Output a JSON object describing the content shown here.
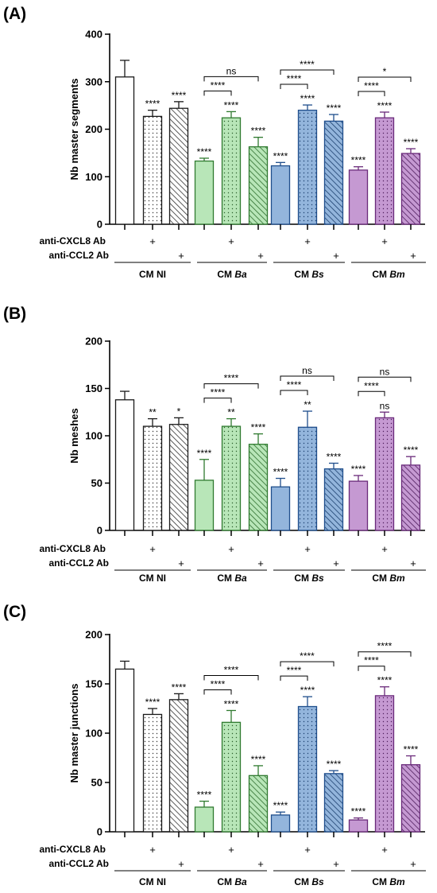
{
  "colors": {
    "NI": "#ffffff",
    "Ba": "#b8e6b8",
    "Bs": "#93b5dc",
    "Bm": "#c599d2",
    "stroke_NI": "#1a1a1a",
    "stroke_Ba": "#2f7a2f",
    "stroke_Bs": "#1f4e8c",
    "stroke_Bm": "#6a2a7a"
  },
  "chart_data": [
    {
      "type": "bar",
      "panel": "(A)",
      "ylabel": "Nb master segments",
      "ylim": [
        0,
        400
      ],
      "yticks": [
        "0",
        "100",
        "200",
        "300",
        "400"
      ],
      "bars": [
        {
          "group": "NI",
          "treatment": "none",
          "value": 310,
          "error": 35,
          "sig": ""
        },
        {
          "group": "NI",
          "treatment": "CXCL8",
          "value": 227,
          "error": 13,
          "sig": "****"
        },
        {
          "group": "NI",
          "treatment": "CCL2",
          "value": 244,
          "error": 14,
          "sig": "****"
        },
        {
          "group": "Ba",
          "treatment": "none",
          "value": 133,
          "error": 6,
          "sig": "****"
        },
        {
          "group": "Ba",
          "treatment": "CXCL8",
          "value": 224,
          "error": 13,
          "sig": "****"
        },
        {
          "group": "Ba",
          "treatment": "CCL2",
          "value": 163,
          "error": 20,
          "sig": "****"
        },
        {
          "group": "Bs",
          "treatment": "none",
          "value": 123,
          "error": 7,
          "sig": "****"
        },
        {
          "group": "Bs",
          "treatment": "CXCL8",
          "value": 240,
          "error": 11,
          "sig": "****"
        },
        {
          "group": "Bs",
          "treatment": "CCL2",
          "value": 217,
          "error": 14,
          "sig": "****"
        },
        {
          "group": "Bm",
          "treatment": "none",
          "value": 114,
          "error": 7,
          "sig": "****"
        },
        {
          "group": "Bm",
          "treatment": "CXCL8",
          "value": 224,
          "error": 12,
          "sig": "****"
        },
        {
          "group": "Bm",
          "treatment": "CCL2",
          "value": 149,
          "error": 10,
          "sig": "****"
        }
      ],
      "brackets": [
        {
          "group": "Ba",
          "inner": "****",
          "outer": "ns"
        },
        {
          "group": "Bs",
          "inner": "****",
          "outer": "****"
        },
        {
          "group": "Bm",
          "inner": "****",
          "outer": "*"
        }
      ],
      "row_labels": [
        "anti-CXCL8 Ab",
        "anti-CCL2 Ab"
      ],
      "plus": "+",
      "groups": [
        {
          "prefix": "CM ",
          "name": "NI"
        },
        {
          "prefix": "CM ",
          "name": "Ba"
        },
        {
          "prefix": "CM ",
          "name": "Bs"
        },
        {
          "prefix": "CM ",
          "name": "Bm"
        }
      ]
    },
    {
      "type": "bar",
      "panel": "(B)",
      "ylabel": "Nb meshes",
      "ylim": [
        0,
        200
      ],
      "yticks": [
        "0",
        "50",
        "100",
        "150",
        "200"
      ],
      "bars": [
        {
          "group": "NI",
          "treatment": "none",
          "value": 138,
          "error": 9,
          "sig": ""
        },
        {
          "group": "NI",
          "treatment": "CXCL8",
          "value": 110,
          "error": 8,
          "sig": "**"
        },
        {
          "group": "NI",
          "treatment": "CCL2",
          "value": 112,
          "error": 7,
          "sig": "*"
        },
        {
          "group": "Ba",
          "treatment": "none",
          "value": 53,
          "error": 22,
          "sig": "****"
        },
        {
          "group": "Ba",
          "treatment": "CXCL8",
          "value": 110,
          "error": 8,
          "sig": "**"
        },
        {
          "group": "Ba",
          "treatment": "CCL2",
          "value": 91,
          "error": 11,
          "sig": "****"
        },
        {
          "group": "Bs",
          "treatment": "none",
          "value": 46,
          "error": 9,
          "sig": "****"
        },
        {
          "group": "Bs",
          "treatment": "CXCL8",
          "value": 109,
          "error": 17,
          "sig": "**"
        },
        {
          "group": "Bs",
          "treatment": "CCL2",
          "value": 65,
          "error": 6,
          "sig": "****"
        },
        {
          "group": "Bm",
          "treatment": "none",
          "value": 52,
          "error": 6,
          "sig": "****"
        },
        {
          "group": "Bm",
          "treatment": "CXCL8",
          "value": 119,
          "error": 6,
          "sig": "ns"
        },
        {
          "group": "Bm",
          "treatment": "CCL2",
          "value": 69,
          "error": 9,
          "sig": "****"
        }
      ],
      "brackets": [
        {
          "group": "Ba",
          "inner": "****",
          "outer": "****"
        },
        {
          "group": "Bs",
          "inner": "****",
          "outer": "ns"
        },
        {
          "group": "Bm",
          "inner": "****",
          "outer": "ns"
        }
      ],
      "row_labels": [
        "anti-CXCL8 Ab",
        "anti-CCL2 Ab"
      ],
      "plus": "+",
      "groups": [
        {
          "prefix": "CM ",
          "name": "NI"
        },
        {
          "prefix": "CM ",
          "name": "Ba"
        },
        {
          "prefix": "CM ",
          "name": "Bs"
        },
        {
          "prefix": "CM ",
          "name": "Bm"
        }
      ]
    },
    {
      "type": "bar",
      "panel": "(C)",
      "ylabel": "Nb master junctions",
      "ylim": [
        0,
        200
      ],
      "yticks": [
        "0",
        "50",
        "100",
        "150",
        "200"
      ],
      "bars": [
        {
          "group": "NI",
          "treatment": "none",
          "value": 165,
          "error": 8,
          "sig": ""
        },
        {
          "group": "NI",
          "treatment": "CXCL8",
          "value": 119,
          "error": 6,
          "sig": "****"
        },
        {
          "group": "NI",
          "treatment": "CCL2",
          "value": 134,
          "error": 6,
          "sig": "****"
        },
        {
          "group": "Ba",
          "treatment": "none",
          "value": 25,
          "error": 6,
          "sig": "****"
        },
        {
          "group": "Ba",
          "treatment": "CXCL8",
          "value": 111,
          "error": 12,
          "sig": "****"
        },
        {
          "group": "Ba",
          "treatment": "CCL2",
          "value": 57,
          "error": 10,
          "sig": "****"
        },
        {
          "group": "Bs",
          "treatment": "none",
          "value": 17,
          "error": 3,
          "sig": "****"
        },
        {
          "group": "Bs",
          "treatment": "CXCL8",
          "value": 127,
          "error": 10,
          "sig": "****"
        },
        {
          "group": "Bs",
          "treatment": "CCL2",
          "value": 59,
          "error": 3,
          "sig": "****"
        },
        {
          "group": "Bm",
          "treatment": "none",
          "value": 12,
          "error": 2,
          "sig": "****"
        },
        {
          "group": "Bm",
          "treatment": "CXCL8",
          "value": 138,
          "error": 9,
          "sig": "****"
        },
        {
          "group": "Bm",
          "treatment": "CCL2",
          "value": 68,
          "error": 9,
          "sig": "****"
        }
      ],
      "brackets": [
        {
          "group": "Ba",
          "inner": "****",
          "outer": "****"
        },
        {
          "group": "Bs",
          "inner": "****",
          "outer": "****"
        },
        {
          "group": "Bm",
          "inner": "****",
          "outer": "****"
        }
      ],
      "row_labels": [
        "anti-CXCL8 Ab",
        "anti-CCL2 Ab"
      ],
      "plus": "+",
      "groups": [
        {
          "prefix": "CM ",
          "name": "NI"
        },
        {
          "prefix": "CM ",
          "name": "Ba"
        },
        {
          "prefix": "CM ",
          "name": "Bs"
        },
        {
          "prefix": "CM ",
          "name": "Bm"
        }
      ]
    }
  ]
}
